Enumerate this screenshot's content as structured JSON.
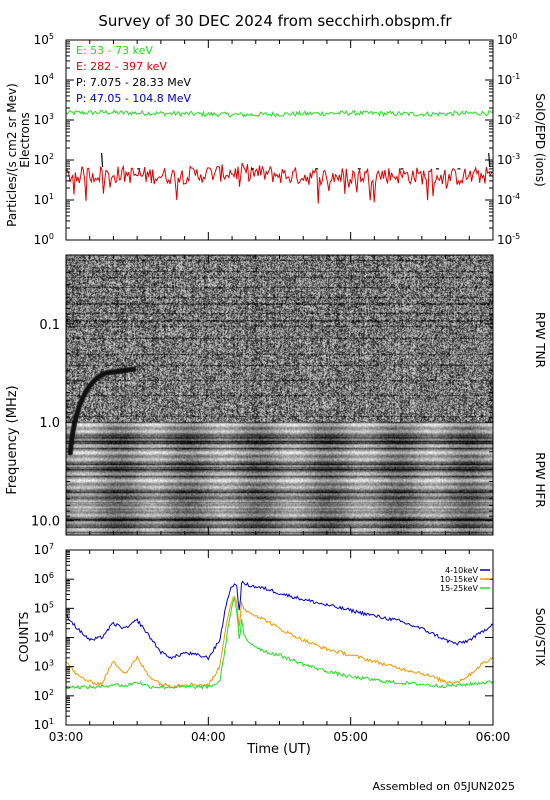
{
  "title": "Survey of 30 DEC 2024 from secchirh.obspm.fr",
  "footer": "Assembled on 05JUN2025",
  "x_axis": {
    "label": "Time (UT)",
    "ticks": [
      "03:00",
      "04:00",
      "05:00",
      "06:00"
    ],
    "range_hours": [
      3,
      6
    ]
  },
  "chart_data": [
    {
      "type": "line",
      "panel": "SolO/EPD",
      "title": "",
      "ylabel": "Particles/(s cm2 sr Mev)",
      "ylabel2": "Electrons",
      "right_label": "SolO/EPD (ions)",
      "yscale": "log",
      "ylim": [
        1,
        100000
      ],
      "y_ticks": [
        "10",
        "10",
        "10",
        "10",
        "10",
        "10"
      ],
      "y_tick_exps": [
        "0",
        "1",
        "2",
        "3",
        "4",
        "5"
      ],
      "y2lim": [
        1e-05,
        1
      ],
      "y2_ticks": [
        "10",
        "10",
        "10",
        "10",
        "10",
        "10"
      ],
      "y2_tick_exps": [
        "-5",
        "-4",
        "-3",
        "-2",
        "-1",
        "0"
      ],
      "legend_position": "top-left",
      "series": [
        {
          "name": "E: 53 - 73 keV",
          "color": "#22dd22",
          "x": [
            3.0,
            3.25,
            3.5,
            3.75,
            4.0,
            4.25,
            4.5,
            4.75,
            5.0,
            5.25,
            5.5,
            5.75,
            6.0
          ],
          "values": [
            1500,
            1550,
            1500,
            1450,
            1400,
            1350,
            1400,
            1450,
            1500,
            1450,
            1400,
            1450,
            1500
          ]
        },
        {
          "name": "E: 282 - 397 keV",
          "color": "#dd0000",
          "x": [
            3.0,
            3.25,
            3.5,
            3.75,
            4.0,
            4.25,
            4.5,
            4.75,
            5.0,
            5.25,
            5.5,
            5.75,
            6.0
          ],
          "values": [
            40,
            45,
            42,
            40,
            45,
            50,
            42,
            38,
            40,
            42,
            40,
            38,
            42
          ]
        },
        {
          "name": "P: 7.075 - 28.33 MeV",
          "color": "#000000",
          "x": [
            3.25,
            3.5,
            4.3,
            4.75,
            5.05,
            5.35,
            5.6,
            5.75,
            5.97
          ],
          "values": [
            0.001,
            0.0006,
            0.0006,
            0.0006,
            0.0006,
            0.0006,
            0.0006,
            0.0006,
            0.001
          ]
        },
        {
          "name": "P: 47.05 - 104.8 MeV",
          "color": "#0000cc",
          "x": [],
          "values": []
        }
      ]
    },
    {
      "type": "heatmap",
      "panel": "RPW",
      "ylabel": "Frequency (MHz)",
      "yscale": "log",
      "ylim_MHz": [
        0.02,
        14
      ],
      "y_ticks": [
        "0.1",
        "1.0",
        "10.0"
      ],
      "sections": [
        "RPW TNR",
        "RPW HFR"
      ],
      "colormap": "grayscale"
    },
    {
      "type": "line",
      "panel": "SolO/STIX",
      "ylabel": "COUNTS",
      "right_label": "SolO/STIX",
      "yscale": "log",
      "ylim": [
        10,
        10000000
      ],
      "y_ticks": [
        "10",
        "10",
        "10",
        "10",
        "10",
        "10",
        "10"
      ],
      "y_tick_exps": [
        "1",
        "2",
        "3",
        "4",
        "5",
        "6",
        "7"
      ],
      "legend_position": "top-right",
      "series": [
        {
          "name": "4-10keV",
          "color": "#0000cc",
          "x": [
            3.0,
            3.08,
            3.17,
            3.25,
            3.33,
            3.42,
            3.5,
            3.58,
            3.67,
            3.75,
            3.83,
            3.92,
            4.0,
            4.08,
            4.12,
            4.15,
            4.18,
            4.2,
            4.22,
            4.23,
            4.25,
            4.27,
            4.33,
            4.42,
            4.5,
            4.67,
            4.83,
            5.0,
            5.17,
            5.33,
            5.5,
            5.6,
            5.67,
            5.75,
            5.83,
            5.92,
            6.0
          ],
          "values": [
            60000,
            20000,
            8000,
            10000,
            30000,
            20000,
            40000,
            12000,
            3000,
            2000,
            3000,
            2500,
            2000,
            8000,
            100000,
            400000,
            700000,
            500000,
            60000,
            800000,
            700000,
            650000,
            550000,
            450000,
            330000,
            200000,
            130000,
            85000,
            55000,
            38000,
            20000,
            12000,
            8000,
            6000,
            8000,
            15000,
            30000
          ]
        },
        {
          "name": "10-15keV",
          "color": "#ee9900",
          "x": [
            3.0,
            3.08,
            3.17,
            3.25,
            3.33,
            3.42,
            3.5,
            3.58,
            3.67,
            3.75,
            3.83,
            3.92,
            4.0,
            4.08,
            4.12,
            4.15,
            4.18,
            4.2,
            4.22,
            4.23,
            4.25,
            4.27,
            4.33,
            4.42,
            4.5,
            4.67,
            4.83,
            5.0,
            5.17,
            5.33,
            5.5,
            5.6,
            5.67,
            5.75,
            5.83,
            5.92,
            6.0
          ],
          "values": [
            1500,
            500,
            300,
            250,
            1500,
            600,
            2000,
            500,
            250,
            220,
            250,
            240,
            230,
            1000,
            20000,
            100000,
            250000,
            150000,
            15000,
            200000,
            100000,
            80000,
            60000,
            35000,
            20000,
            8000,
            4000,
            2500,
            1500,
            900,
            600,
            400,
            300,
            300,
            500,
            1200,
            2000
          ]
        },
        {
          "name": "15-25keV",
          "color": "#22dd22",
          "x": [
            3.0,
            3.08,
            3.17,
            3.25,
            3.33,
            3.42,
            3.5,
            3.58,
            3.67,
            3.75,
            3.83,
            3.92,
            4.0,
            4.08,
            4.12,
            4.15,
            4.18,
            4.2,
            4.22,
            4.23,
            4.25,
            4.27,
            4.33,
            4.42,
            4.5,
            4.67,
            4.83,
            5.0,
            5.17,
            5.33,
            5.5,
            5.6,
            5.67,
            5.75,
            5.83,
            5.92,
            6.0
          ],
          "values": [
            200,
            200,
            200,
            200,
            250,
            220,
            300,
            210,
            200,
            200,
            200,
            200,
            200,
            300,
            5000,
            50000,
            250000,
            80000,
            5000,
            50000,
            12000,
            8000,
            5000,
            3000,
            2500,
            1200,
            700,
            450,
            350,
            280,
            250,
            220,
            220,
            230,
            250,
            280,
            300
          ]
        }
      ]
    }
  ]
}
